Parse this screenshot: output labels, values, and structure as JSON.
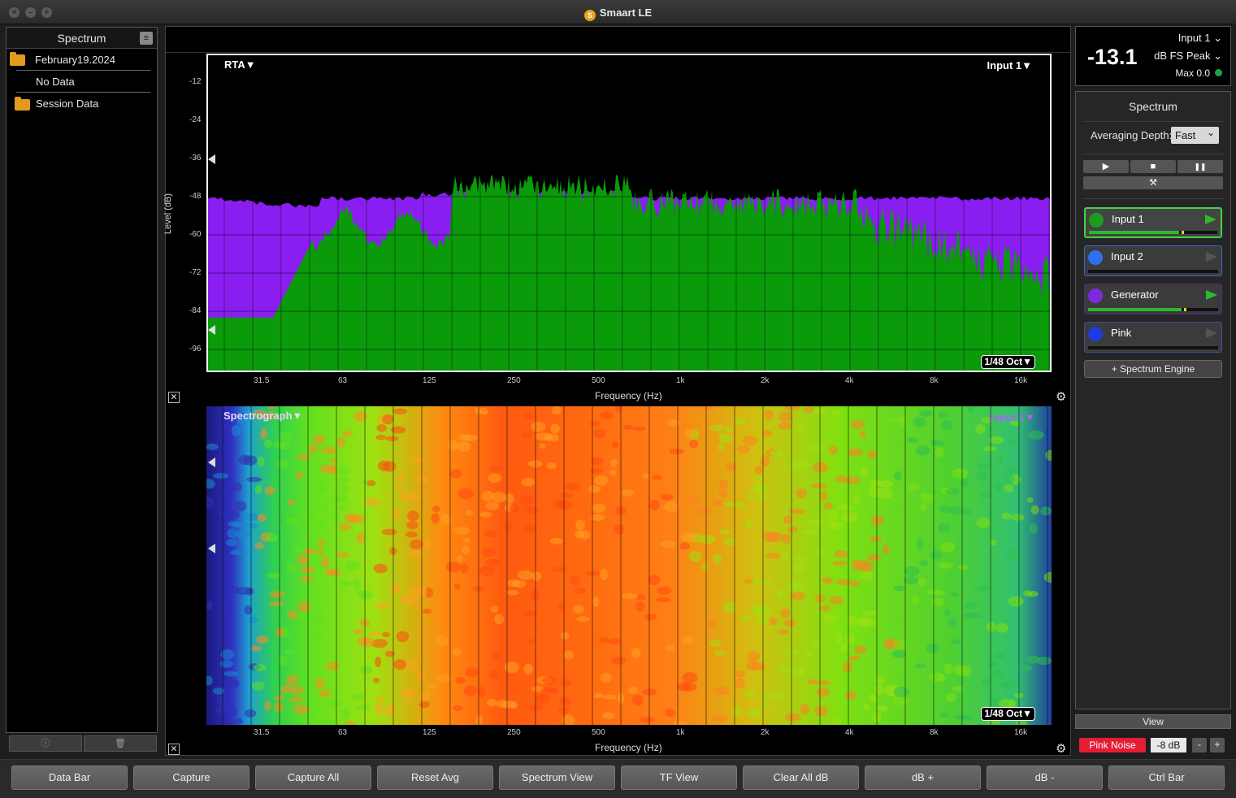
{
  "window": {
    "title": "Smaart LE",
    "logo_text": "S"
  },
  "left_panel": {
    "title": "Spectrum",
    "tree": [
      {
        "label": "February19.2024",
        "folder": true
      },
      {
        "label": "No Data",
        "folder": false
      },
      {
        "label": "Session Data",
        "folder": true
      }
    ],
    "footer": {
      "info_icon": "ⓘ",
      "trash_icon": "🗑"
    }
  },
  "rta_plot": {
    "mode_label": "RTA▼",
    "input_label": "Input 1▼",
    "resolution": "1/48 Oct▼",
    "ylabel": "Level (dB)",
    "xlabel": "Frequency (Hz)",
    "y_ticks": [
      "-12",
      "-24",
      "-36",
      "-48",
      "-60",
      "-72",
      "-84",
      "-96"
    ],
    "x_ticks": [
      "31.5",
      "63",
      "125",
      "250",
      "500",
      "1k",
      "2k",
      "4k",
      "8k",
      "16k"
    ]
  },
  "spectrograph": {
    "mode_label": "Spectrograph▼",
    "input_label": "Input 1▼",
    "resolution": "1/48 Oct▼",
    "xlabel": "Frequency (Hz)",
    "x_ticks": [
      "31.5",
      "63",
      "125",
      "250",
      "500",
      "1k",
      "2k",
      "4k",
      "8k",
      "16k"
    ]
  },
  "meter": {
    "value": "-13.1",
    "source": "Input 1",
    "mode": "dB FS Peak",
    "max": "Max 0.0",
    "caret": "⌄"
  },
  "right_panel": {
    "title": "Spectrum",
    "averaging_label": "Averaging Depth:",
    "averaging_value": "Fast",
    "transport": {
      "play": "▶",
      "stop": "■",
      "pause": "❚❚",
      "tools": "⚒"
    },
    "inputs": [
      {
        "name": "Input 1",
        "color": "#1f9a1f",
        "border": "#3fd63f",
        "level": 0.7,
        "peak": 0.72,
        "active": true
      },
      {
        "name": "Input 2",
        "color": "#2f6ff0",
        "border": "#3a63d8",
        "level": 0.0,
        "peak": 0.0,
        "active": false
      },
      {
        "name": "Generator",
        "color": "#7b2bd9",
        "border": "#4b2a8a",
        "level": 0.72,
        "peak": 0.74,
        "active": true
      },
      {
        "name": "Pink",
        "color": "#1f3ae0",
        "border": "#3a4fa8",
        "level": 0.0,
        "peak": 0.0,
        "active": false
      }
    ],
    "add_engine": "+ Spectrum Engine"
  },
  "controls": {
    "view": "View",
    "pink_noise": "Pink Noise",
    "gen_level": "-8 dB",
    "minus": "-",
    "plus": "+"
  },
  "bottom_bar": [
    "Data Bar",
    "Capture",
    "Capture All",
    "Reset Avg",
    "Spectrum View",
    "TF View",
    "Clear All dB",
    "dB +",
    "dB -",
    "Ctrl Bar"
  ],
  "colors": {
    "rta_green": "#0a9a0a",
    "rta_purple": "#8a1ef0",
    "accent_red": "#e31e34"
  }
}
